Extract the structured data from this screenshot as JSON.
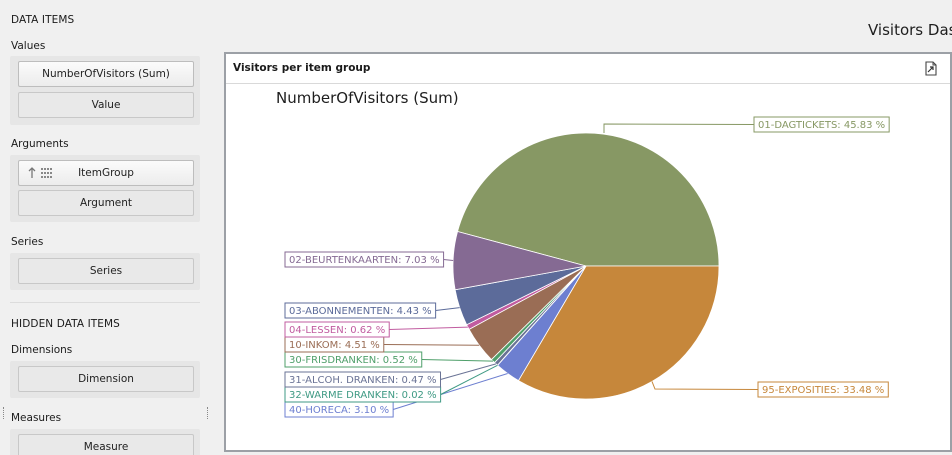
{
  "window_title": "Visitors Das",
  "sidebar": {
    "data_items_title": "DATA ITEMS",
    "values": {
      "label": "Values",
      "items": [
        "NumberOfVisitors (Sum)",
        "Value"
      ]
    },
    "arguments": {
      "label": "Arguments",
      "items": [
        "ItemGroup",
        "Argument"
      ]
    },
    "series": {
      "label": "Series",
      "items": [
        "Series"
      ]
    },
    "hidden_title": "HIDDEN DATA ITEMS",
    "dimensions": {
      "label": "Dimensions",
      "items": [
        "Dimension"
      ]
    },
    "measures": {
      "label": "Measures",
      "items": [
        "Measure"
      ]
    }
  },
  "card": {
    "title": "Visitors per item group",
    "export_icon": "export-icon"
  },
  "chart_data": {
    "type": "pie",
    "title": "NumberOfVisitors (Sum)",
    "slices": [
      {
        "label": "01-DAGTICKETS: 45.83 %",
        "name": "01-DAGTICKETS",
        "value": 45.83,
        "color": "#879864"
      },
      {
        "label": "95-EXPOSITIES: 33.48 %",
        "name": "95-EXPOSITIES",
        "value": 33.48,
        "color": "#c6873b"
      },
      {
        "label": "40-HORECA: 3.10 %",
        "name": "40-HORECA",
        "value": 3.1,
        "color": "#6d7fd0"
      },
      {
        "label": "32-WARME DRANKEN: 0.02 %",
        "name": "32-WARME DRANKEN",
        "value": 0.02,
        "color": "#3f9a84"
      },
      {
        "label": "31-ALCOH. DRANKEN: 0.47 %",
        "name": "31-ALCOH. DRANKEN",
        "value": 0.47,
        "color": "#6a7395"
      },
      {
        "label": "30-FRISDRANKEN: 0.52 %",
        "name": "30-FRISDRANKEN",
        "value": 0.52,
        "color": "#4f9f6a"
      },
      {
        "label": "10-INKOM: 4.51 %",
        "name": "10-INKOM",
        "value": 4.51,
        "color": "#9a6d55"
      },
      {
        "label": "04-LESSEN: 0.62 %",
        "name": "04-LESSEN",
        "value": 0.62,
        "color": "#c15ca0"
      },
      {
        "label": "03-ABONNEMENTEN: 4.43 %",
        "name": "03-ABONNEMENTEN",
        "value": 4.43,
        "color": "#5c6b9a"
      },
      {
        "label": "02-BEURTENKAARTEN: 7.03 %",
        "name": "02-BEURTENKAARTEN",
        "value": 7.03,
        "color": "#856a93"
      }
    ],
    "legend": "none"
  }
}
